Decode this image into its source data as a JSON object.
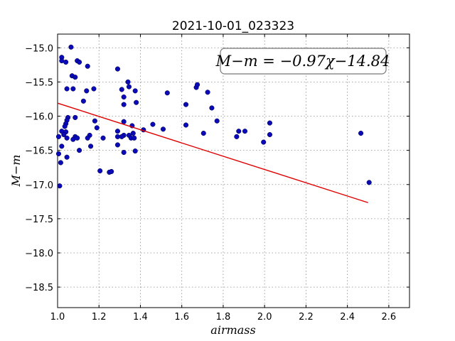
{
  "chart_data": {
    "type": "scatter",
    "title": "2021-10-01_023323",
    "xlabel": "airmass",
    "ylabel": "M−m",
    "xlim": [
      1.0,
      2.7
    ],
    "ylim": [
      -18.8,
      -14.8
    ],
    "xticks": [
      1.0,
      1.2,
      1.4,
      1.6,
      1.8,
      2.0,
      2.2,
      2.4,
      2.6
    ],
    "yticks": [
      -15.0,
      -15.5,
      -16.0,
      -16.5,
      -17.0,
      -17.5,
      -18.0,
      -18.5
    ],
    "xtick_labels": [
      "1.0",
      "1.2",
      "1.4",
      "1.6",
      "1.8",
      "2.0",
      "2.2",
      "2.4",
      "2.6"
    ],
    "ytick_labels": [
      "−15.0",
      "−15.5",
      "−16.0",
      "−16.5",
      "−17.0",
      "−17.5",
      "−18.0",
      "−18.5"
    ],
    "grid": true,
    "annotation": "M−m = −0.97χ−14.84",
    "fit": {
      "slope": -0.97,
      "intercept": -14.84,
      "x_range": [
        1.0,
        2.5
      ],
      "color": "#e00000"
    },
    "marker_color": "#0a0ab8",
    "points": [
      [
        1.065,
        -14.99
      ],
      [
        1.02,
        -15.14
      ],
      [
        1.02,
        -15.19
      ],
      [
        1.04,
        -15.21
      ],
      [
        1.095,
        -15.19
      ],
      [
        1.105,
        -15.21
      ],
      [
        1.145,
        -15.27
      ],
      [
        1.29,
        -15.31
      ],
      [
        1.07,
        -15.41
      ],
      [
        1.085,
        -15.43
      ],
      [
        1.045,
        -15.6
      ],
      [
        1.075,
        -15.6
      ],
      [
        1.14,
        -15.63
      ],
      [
        1.175,
        -15.6
      ],
      [
        1.34,
        -15.5
      ],
      [
        1.345,
        -15.57
      ],
      [
        1.31,
        -15.61
      ],
      [
        1.375,
        -15.63
      ],
      [
        1.32,
        -15.72
      ],
      [
        1.38,
        -15.8
      ],
      [
        1.32,
        -15.83
      ],
      [
        1.125,
        -15.78
      ],
      [
        1.53,
        -15.66
      ],
      [
        1.67,
        -15.58
      ],
      [
        1.675,
        -15.54
      ],
      [
        1.725,
        -15.65
      ],
      [
        1.745,
        -15.88
      ],
      [
        1.62,
        -15.83
      ],
      [
        1.05,
        -16.02
      ],
      [
        1.045,
        -16.06
      ],
      [
        1.085,
        -16.02
      ],
      [
        1.04,
        -16.11
      ],
      [
        1.035,
        -16.15
      ],
      [
        1.18,
        -16.07
      ],
      [
        1.19,
        -16.17
      ],
      [
        1.32,
        -16.08
      ],
      [
        1.36,
        -16.14
      ],
      [
        1.46,
        -16.12
      ],
      [
        1.415,
        -16.2
      ],
      [
        1.51,
        -16.19
      ],
      [
        1.62,
        -16.13
      ],
      [
        1.77,
        -16.07
      ],
      [
        2.025,
        -16.1
      ],
      [
        1.02,
        -16.22
      ],
      [
        1.04,
        -16.23
      ],
      [
        1.03,
        -16.27
      ],
      [
        1.005,
        -16.3
      ],
      [
        1.085,
        -16.3
      ],
      [
        1.075,
        -16.34
      ],
      [
        1.045,
        -16.32
      ],
      [
        1.095,
        -16.32
      ],
      [
        1.155,
        -16.28
      ],
      [
        1.145,
        -16.32
      ],
      [
        1.22,
        -16.32
      ],
      [
        1.29,
        -16.22
      ],
      [
        1.29,
        -16.3
      ],
      [
        1.32,
        -16.28
      ],
      [
        1.31,
        -16.3
      ],
      [
        1.345,
        -16.28
      ],
      [
        1.365,
        -16.25
      ],
      [
        1.355,
        -16.32
      ],
      [
        1.37,
        -16.32
      ],
      [
        1.705,
        -16.25
      ],
      [
        1.875,
        -16.22
      ],
      [
        1.905,
        -16.22
      ],
      [
        1.865,
        -16.3
      ],
      [
        2.025,
        -16.27
      ],
      [
        1.995,
        -16.38
      ],
      [
        2.465,
        -16.25
      ],
      [
        1.02,
        -16.44
      ],
      [
        1.16,
        -16.44
      ],
      [
        1.29,
        -16.42
      ],
      [
        1.105,
        -16.5
      ],
      [
        1.32,
        -16.53
      ],
      [
        1.375,
        -16.51
      ],
      [
        1.005,
        -16.55
      ],
      [
        1.045,
        -16.6
      ],
      [
        1.015,
        -16.68
      ],
      [
        1.205,
        -16.8
      ],
      [
        1.25,
        -16.82
      ],
      [
        1.26,
        -16.81
      ],
      [
        1.01,
        -17.02
      ],
      [
        2.505,
        -16.97
      ]
    ]
  }
}
